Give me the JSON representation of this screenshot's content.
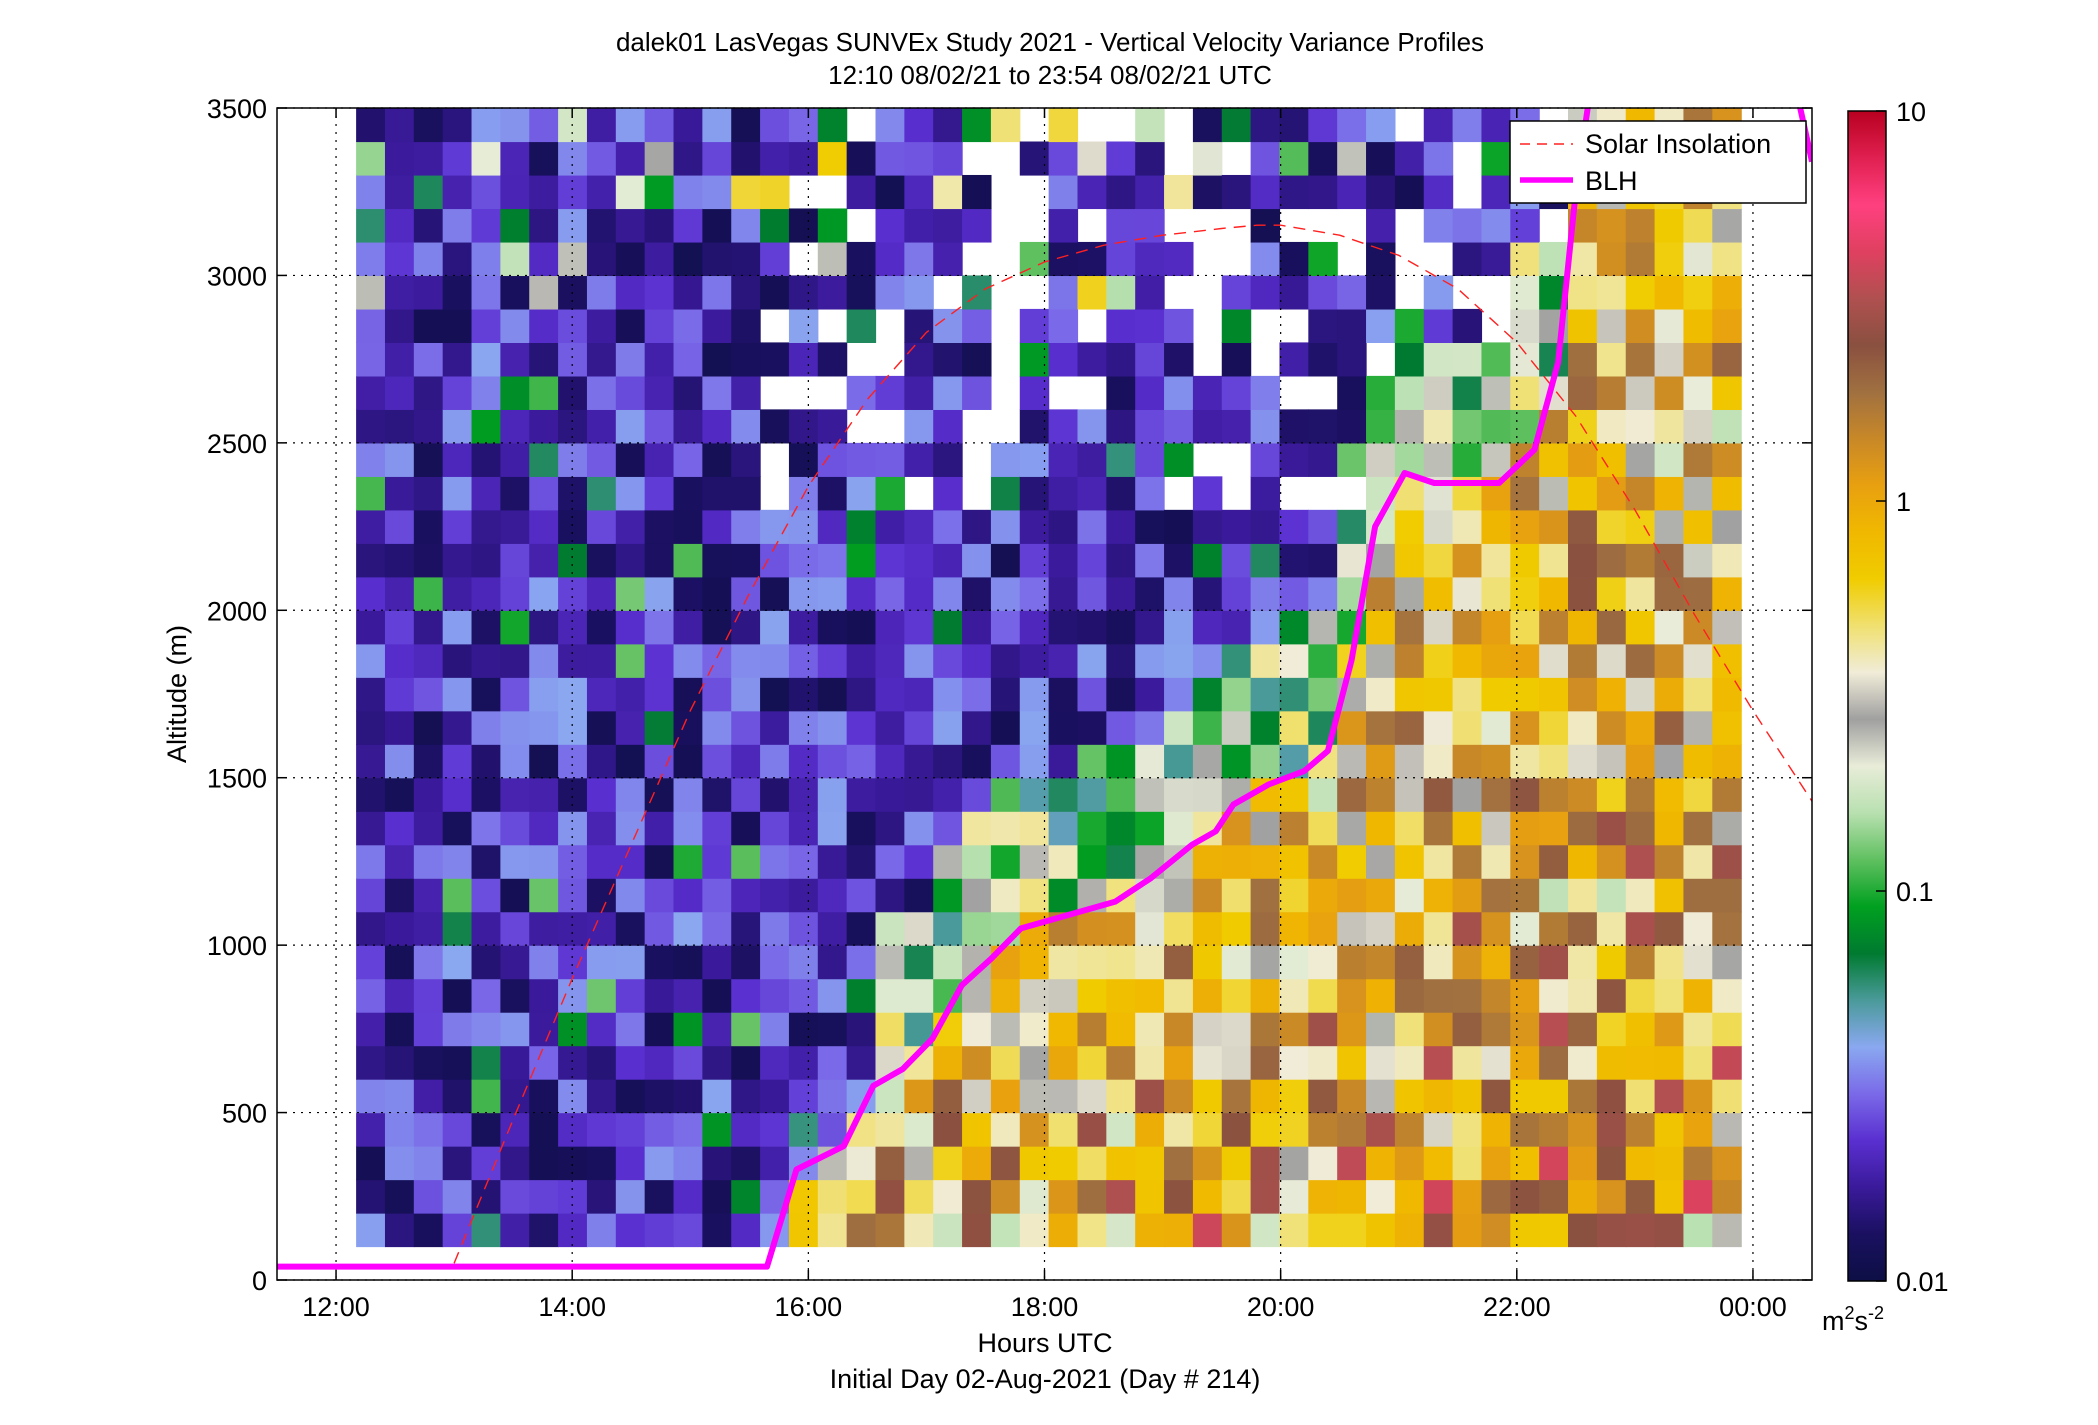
{
  "chart_data": {
    "type": "heatmap",
    "title": "dalek01 LasVegas SUNVEx Study 2021 - Vertical Velocity Variance Profiles",
    "subtitle": "12:10 08/02/21 to 23:54 08/02/21  UTC",
    "xlabel": "Hours UTC",
    "xlabel2": "Initial Day 02-Aug-2021 (Day # 214)",
    "ylabel": "Altitude (m)",
    "xlim": [
      11.5,
      24.5
    ],
    "ylim": [
      0,
      3500
    ],
    "x_ticks": [
      12,
      14,
      16,
      18,
      20,
      22,
      24
    ],
    "x_tick_labels": [
      "12:00",
      "14:00",
      "16:00",
      "18:00",
      "20:00",
      "22:00",
      "00:00"
    ],
    "y_ticks": [
      0,
      500,
      1000,
      1500,
      2000,
      2500,
      3000,
      3500
    ],
    "y_tick_labels": [
      "0",
      "500",
      "1000",
      "1500",
      "2000",
      "2500",
      "3000",
      "3500"
    ],
    "grid": true,
    "legend_position": "top-right",
    "colorbar": {
      "scale": "log",
      "range": [
        0.01,
        10
      ],
      "ticks": [
        0.01,
        0.1,
        1,
        10
      ],
      "tick_labels": [
        "0.01",
        "0.1",
        "1",
        "10"
      ],
      "units_base": "m",
      "units_base_sup": "2",
      "units_exp": "s",
      "units_exp_sup": "-2"
    },
    "heatmap_extent": {
      "x": [
        12.17,
        23.9
      ],
      "y": [
        100,
        3500
      ]
    },
    "series": [
      {
        "name": "Solar Insolation",
        "style": "dashed",
        "color": "#ff2020",
        "points": [
          [
            13.0,
            50
          ],
          [
            13.5,
            480
          ],
          [
            14.0,
            900
          ],
          [
            14.5,
            1300
          ],
          [
            15.0,
            1700
          ],
          [
            15.5,
            2050
          ],
          [
            16.0,
            2370
          ],
          [
            16.5,
            2630
          ],
          [
            17.0,
            2830
          ],
          [
            17.5,
            2960
          ],
          [
            18.0,
            3040
          ],
          [
            18.5,
            3090
          ],
          [
            19.0,
            3120
          ],
          [
            19.5,
            3140
          ],
          [
            19.8,
            3150
          ],
          [
            20.0,
            3150
          ],
          [
            20.5,
            3120
          ],
          [
            21.0,
            3060
          ],
          [
            21.5,
            2960
          ],
          [
            22.0,
            2800
          ],
          [
            22.5,
            2580
          ],
          [
            23.0,
            2300
          ],
          [
            23.5,
            1990
          ],
          [
            24.0,
            1700
          ],
          [
            24.5,
            1430
          ]
        ]
      },
      {
        "name": "BLH",
        "style": "solid",
        "color": "#ff00ff",
        "points": [
          [
            11.5,
            40
          ],
          [
            15.65,
            40
          ],
          [
            15.9,
            330
          ],
          [
            16.3,
            400
          ],
          [
            16.55,
            580
          ],
          [
            16.8,
            630
          ],
          [
            17.05,
            720
          ],
          [
            17.3,
            880
          ],
          [
            17.55,
            960
          ],
          [
            17.8,
            1050
          ],
          [
            18.1,
            1080
          ],
          [
            18.6,
            1130
          ],
          [
            18.9,
            1200
          ],
          [
            19.25,
            1300
          ],
          [
            19.45,
            1340
          ],
          [
            19.6,
            1420
          ],
          [
            19.9,
            1480
          ],
          [
            20.2,
            1520
          ],
          [
            20.4,
            1580
          ],
          [
            20.6,
            1850
          ],
          [
            20.8,
            2250
          ],
          [
            21.05,
            2410
          ],
          [
            21.3,
            2380
          ],
          [
            21.85,
            2380
          ],
          [
            22.15,
            2480
          ],
          [
            22.35,
            2740
          ],
          [
            22.5,
            3250
          ],
          [
            22.6,
            3500
          ]
        ],
        "segment2": [
          [
            24.4,
            3500
          ],
          [
            24.5,
            3340
          ]
        ]
      }
    ]
  },
  "colors": {
    "blh": "#ff00ff",
    "solar": "#ff2020",
    "axis": "#000000",
    "background": "#ffffff",
    "colormap_stops": [
      "#0d0f45",
      "#1a1060",
      "#3a1a9a",
      "#5a2fd0",
      "#7a6ae8",
      "#8aa8f0",
      "#4a9a9a",
      "#007a30",
      "#00a020",
      "#60c060",
      "#b8e0b0",
      "#e8ecd8",
      "#a0a0a0",
      "#f0ecd8",
      "#f0e070",
      "#f0cc00",
      "#f0b800",
      "#e8a010",
      "#c88828",
      "#a07040",
      "#8a5040",
      "#b05050",
      "#e04060",
      "#ff4080",
      "#e02050",
      "#b80020"
    ]
  }
}
